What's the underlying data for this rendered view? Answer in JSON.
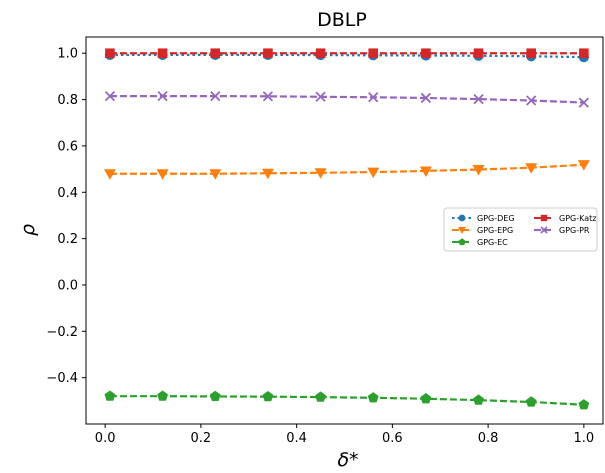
{
  "chart_data": {
    "type": "line",
    "title": "DBLP",
    "xlabel": "δ*",
    "ylabel": "ρ",
    "xlim": [
      -0.04,
      1.04
    ],
    "ylim": [
      -0.6,
      1.07
    ],
    "xticks": [
      0.0,
      0.2,
      0.4,
      0.6,
      0.8,
      1.0
    ],
    "xtick_labels": [
      "0.0",
      "0.2",
      "0.4",
      "0.6",
      "0.8",
      "1.0"
    ],
    "yticks": [
      -0.4,
      -0.2,
      0.0,
      0.2,
      0.4,
      0.6,
      0.8,
      1.0
    ],
    "ytick_labels": [
      "−0.4",
      "−0.2",
      "0.0",
      "0.2",
      "0.4",
      "0.6",
      "0.8",
      "1.0"
    ],
    "grid": false,
    "legend_position": "center-right",
    "x": [
      0.01,
      0.12,
      0.23,
      0.34,
      0.45,
      0.56,
      0.67,
      0.78,
      0.89,
      1.0
    ],
    "series": [
      {
        "name": "GPG-DEG",
        "color": "#1f77b4",
        "marker": "circle",
        "linestyle": "dotted",
        "values": [
          0.993,
          0.993,
          0.993,
          0.993,
          0.992,
          0.991,
          0.99,
          0.989,
          0.987,
          0.983
        ]
      },
      {
        "name": "GPG-EPG",
        "color": "#ff7f0e",
        "marker": "triangle-down",
        "linestyle": "dashed",
        "values": [
          0.48,
          0.48,
          0.48,
          0.482,
          0.484,
          0.487,
          0.492,
          0.498,
          0.506,
          0.519
        ]
      },
      {
        "name": "GPG-EC",
        "color": "#2ca02c",
        "marker": "pentagon",
        "linestyle": "dashed",
        "values": [
          -0.48,
          -0.48,
          -0.481,
          -0.482,
          -0.484,
          -0.487,
          -0.491,
          -0.497,
          -0.505,
          -0.517
        ]
      },
      {
        "name": "GPG-Katz",
        "color": "#d62728",
        "marker": "square",
        "linestyle": "dashed",
        "values": [
          1.0,
          1.0,
          1.0,
          1.0,
          1.0,
          1.0,
          1.0,
          1.0,
          1.0,
          1.0
        ]
      },
      {
        "name": "GPG-PR",
        "color": "#9467bd",
        "marker": "x",
        "linestyle": "dashed",
        "values": [
          0.815,
          0.815,
          0.815,
          0.814,
          0.812,
          0.81,
          0.807,
          0.802,
          0.796,
          0.787
        ]
      }
    ],
    "legend_order": [
      "GPG-DEG",
      "GPG-Katz",
      "GPG-EPG",
      "GPG-PR",
      "GPG-EC"
    ]
  }
}
